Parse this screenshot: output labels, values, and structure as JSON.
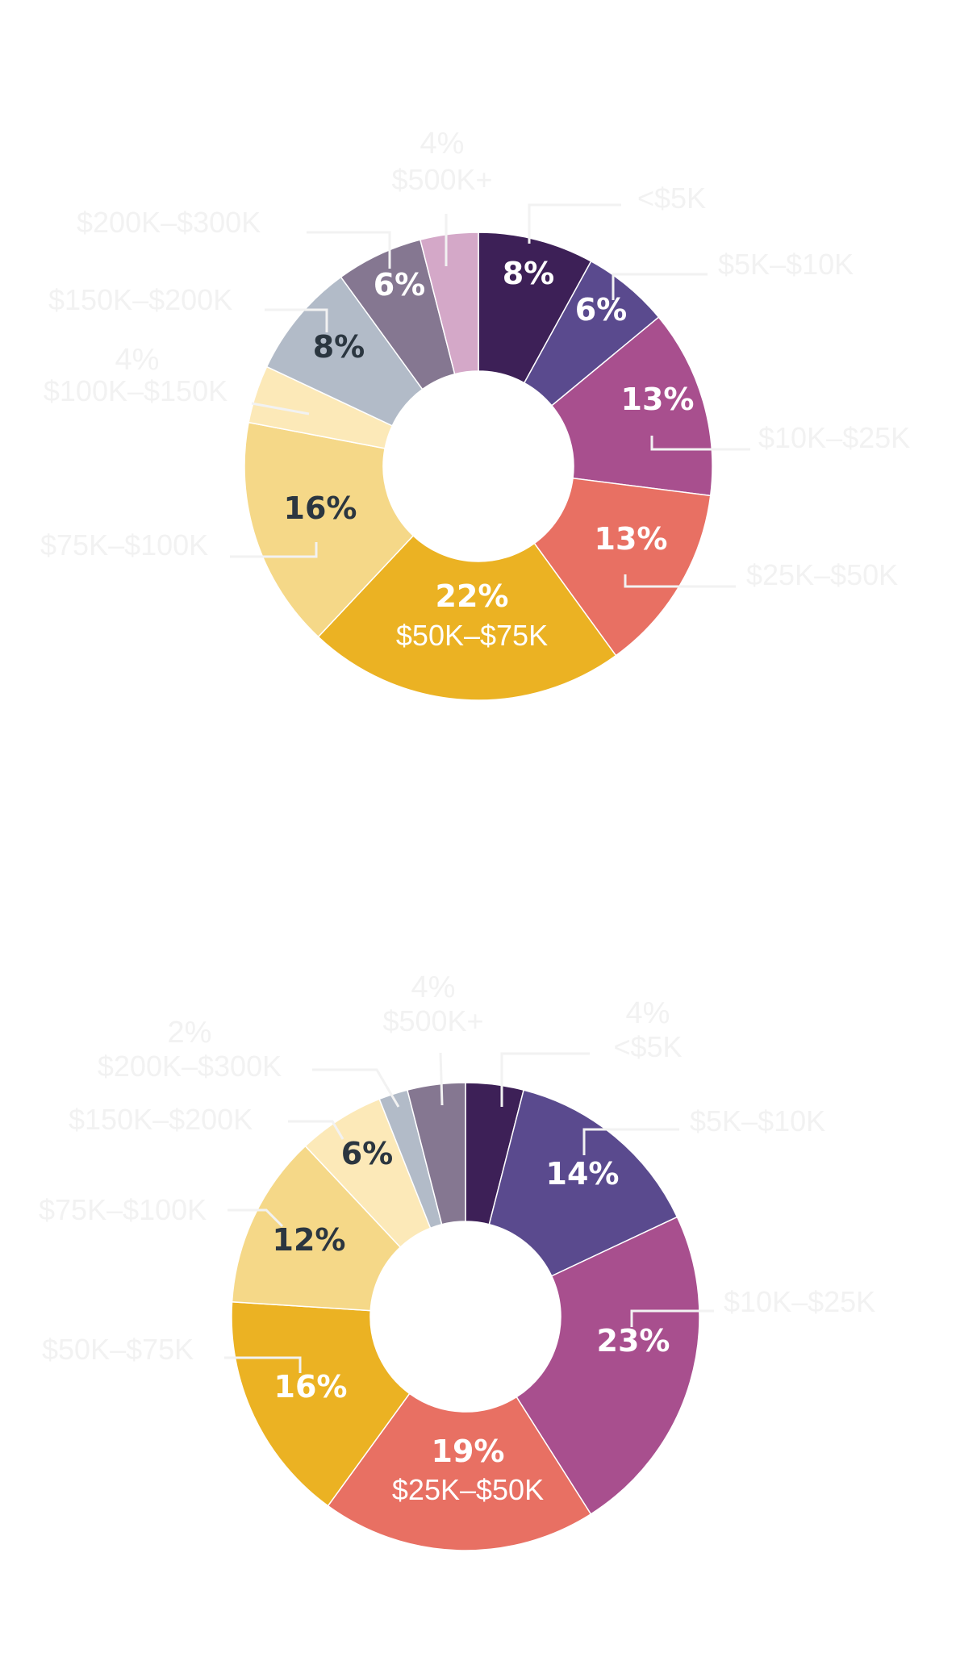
{
  "chart_data": [
    {
      "type": "pie",
      "style": "donut",
      "categories": [
        "<$5K",
        "$5K–$10K",
        "$10K–$25K",
        "$25K–$50K",
        "$50K–$75K",
        "$75K–$100K",
        "$100K–$150K",
        "$150K–$200K",
        "$200K–$300K",
        "$500K+"
      ],
      "values": [
        8,
        6,
        13,
        13,
        22,
        16,
        4,
        8,
        6,
        4
      ],
      "value_labels": [
        "8%",
        "6%",
        "13%",
        "13%",
        "22%",
        "16%",
        "4%",
        "8%",
        "6%",
        "4%"
      ],
      "label_placement": [
        "inside",
        "inside",
        "inside",
        "inside",
        "inside-with-category",
        "inside",
        "outside-with-percent",
        "inside",
        "inside",
        "outside-with-percent"
      ],
      "colors": [
        "#3d2057",
        "#5a4a8e",
        "#a84f8e",
        "#e87063",
        "#ebb223",
        "#f5d888",
        "#fce9b8",
        "#b2bbc8",
        "#857791",
        "#d4a8c8"
      ],
      "label_colors": [
        "#ffffff",
        "#ffffff",
        "#ffffff",
        "#ffffff",
        "#ffffff",
        "#2b3640",
        "#2b3640",
        "#2b3640",
        "#ffffff",
        "#2b3640"
      ]
    },
    {
      "type": "pie",
      "style": "donut",
      "categories": [
        "<$5K",
        "$5K–$10K",
        "$10K–$25K",
        "$25K–$50K",
        "$50K–$75K",
        "$75K–$100K",
        "$150K–$200K",
        "$200K–$300K",
        "$500K+"
      ],
      "values": [
        4,
        14,
        23,
        19,
        16,
        12,
        6,
        2,
        4
      ],
      "value_labels": [
        "4%",
        "14%",
        "23%",
        "19%",
        "16%",
        "12%",
        "6%",
        "2%",
        "4%"
      ],
      "label_placement": [
        "outside-with-percent",
        "inside",
        "inside",
        "inside-with-category",
        "inside",
        "inside",
        "inside",
        "outside-with-percent",
        "outside-with-percent"
      ],
      "colors": [
        "#3d2057",
        "#5a4a8e",
        "#a84f8e",
        "#e87063",
        "#ebb223",
        "#f5d888",
        "#fce9b8",
        "#b2bbc8",
        "#857791"
      ],
      "label_colors": [
        "#ffffff",
        "#ffffff",
        "#ffffff",
        "#ffffff",
        "#ffffff",
        "#2b3640",
        "#2b3640",
        "#2b3640",
        "#2b3640"
      ]
    }
  ],
  "outside_label_color": "#f2f2f2",
  "leader_line_color": "#f2f2f2"
}
